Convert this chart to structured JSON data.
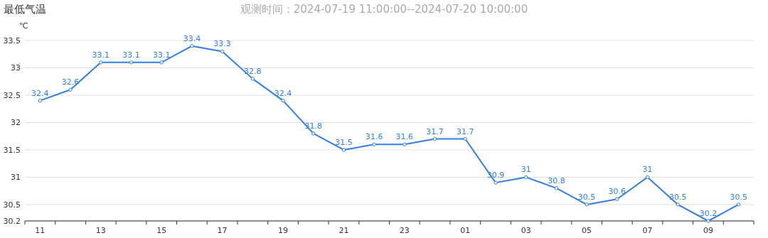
{
  "chart_data": {
    "type": "line",
    "title": "最低气温",
    "subtitle": "观测时间：2024-07-19 11:00:00--2024-07-20 10:00:00",
    "ylabel": "℃",
    "categories": [
      "11",
      null,
      "13",
      null,
      "15",
      null,
      "17",
      null,
      "19",
      null,
      "21",
      null,
      "23",
      null,
      "01",
      null,
      "03",
      null,
      "05",
      null,
      "07",
      null,
      "09",
      null
    ],
    "series": [
      {
        "color": "#2f7fe8",
        "values": [
          32.4,
          32.6,
          33.1,
          33.1,
          33.1,
          33.4,
          33.3,
          32.8,
          32.4,
          31.8,
          31.5,
          31.6,
          31.6,
          31.7,
          31.7,
          30.9,
          31,
          30.8,
          30.5,
          30.6,
          31,
          30.5,
          30.2,
          30.5
        ]
      }
    ],
    "ylim": [
      30.2,
      33.5
    ],
    "yticks": [
      30.2,
      30.5,
      31,
      31.5,
      32,
      32.5,
      33,
      33.5
    ],
    "grid": "y",
    "marker": "circle",
    "line_style": "solid",
    "data_labels": true
  }
}
